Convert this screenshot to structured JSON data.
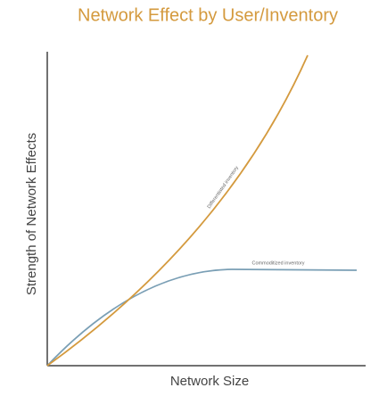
{
  "header": {
    "title": "Network Effect by User/Inventory"
  },
  "axes": {
    "x_label": "Network Size",
    "y_label": "Strength of Network Effects"
  },
  "curves": [
    {
      "label": "Differentiated inventory"
    },
    {
      "label": "Commoditized inventory"
    }
  ]
}
